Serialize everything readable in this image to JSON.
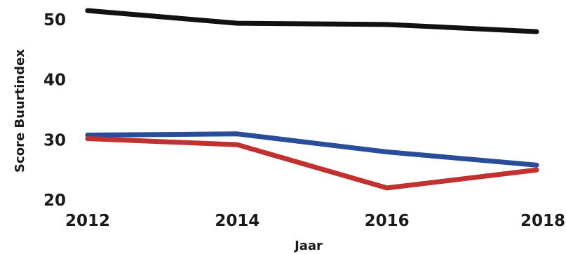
{
  "chart_data": {
    "type": "line",
    "title": "",
    "xlabel": "Jaar",
    "ylabel": "Score Buurtindex",
    "x": [
      2012,
      2014,
      2016,
      2018
    ],
    "x_ticks": [
      "2012",
      "2014",
      "2016",
      "2018"
    ],
    "y_ticks": [
      "20",
      "30",
      "40",
      "50"
    ],
    "xlim": [
      2012,
      2018
    ],
    "ylim": [
      20,
      52
    ],
    "grid": false,
    "legend": "none",
    "series": [
      {
        "color": "#111111",
        "values": [
          51.5,
          49.4,
          49.2,
          48.0
        ]
      },
      {
        "color": "#2a4d9a",
        "values": [
          30.8,
          31.0,
          28.0,
          25.8
        ]
      },
      {
        "color": "#c0322f",
        "values": [
          30.2,
          29.2,
          22.0,
          25.0
        ]
      }
    ]
  }
}
